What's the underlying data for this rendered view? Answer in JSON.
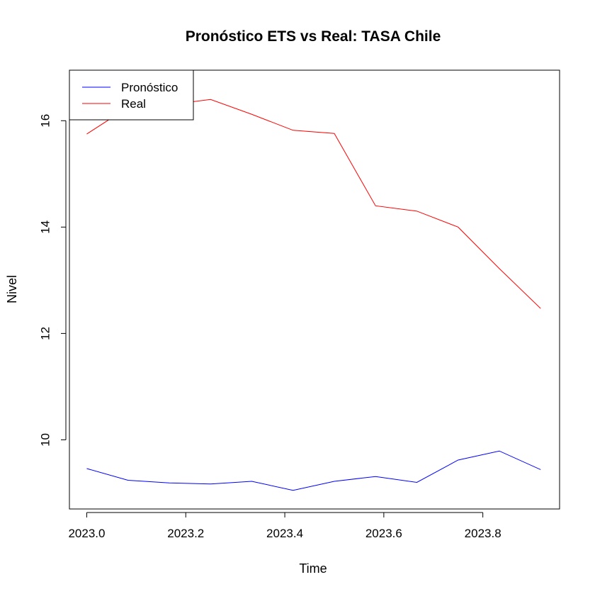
{
  "chart_data": {
    "type": "line",
    "title": "Pronóstico ETS vs Real: TASA Chile",
    "xlabel": "Time",
    "ylabel": "Nivel",
    "xlim": [
      2022.965,
      2023.955
    ],
    "ylim": [
      8.7,
      16.95
    ],
    "xticks": [
      2023.0,
      2023.2,
      2023.4,
      2023.6,
      2023.8
    ],
    "xtick_labels": [
      "2023.0",
      "2023.2",
      "2023.4",
      "2023.6",
      "2023.8"
    ],
    "yticks": [
      10,
      12,
      14,
      16
    ],
    "ytick_labels": [
      "10",
      "12",
      "14",
      "16"
    ],
    "x": [
      2023.0,
      2023.0833,
      2023.1667,
      2023.25,
      2023.3333,
      2023.4167,
      2023.5,
      2023.5833,
      2023.6667,
      2023.75,
      2023.8333,
      2023.9167
    ],
    "series": [
      {
        "name": "Pronóstico",
        "color": "#0000ff",
        "values": [
          9.46,
          9.24,
          9.19,
          9.17,
          9.22,
          9.05,
          9.22,
          9.31,
          9.2,
          9.62,
          9.79,
          9.44
        ]
      },
      {
        "name": "Real",
        "color": "#ff0000",
        "values": [
          15.75,
          16.25,
          16.3,
          16.4,
          16.12,
          15.82,
          15.76,
          14.4,
          14.3,
          14.0,
          13.22,
          12.47
        ]
      }
    ],
    "grid": false,
    "legend_position": "top-left"
  }
}
